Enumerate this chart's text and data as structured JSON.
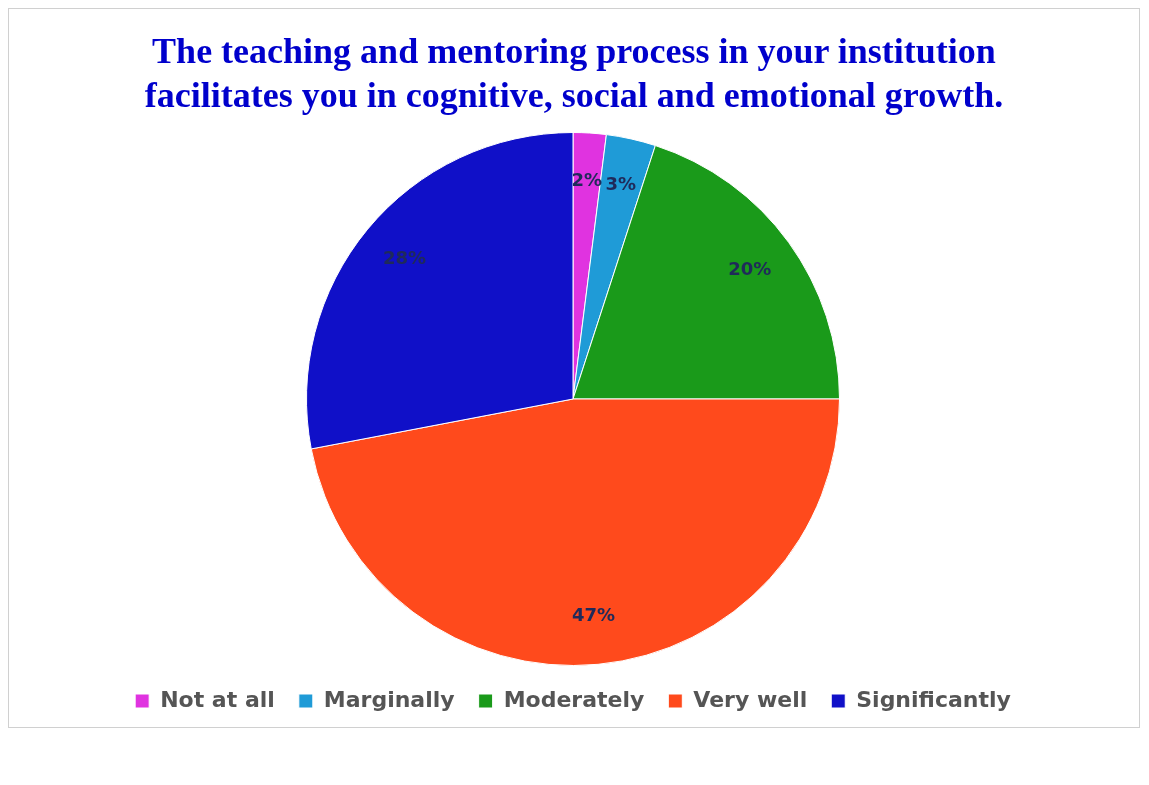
{
  "chart_data": {
    "type": "pie",
    "title": "The teaching and mentoring process in your institution facilitates you in cognitive, social and emotional growth.",
    "categories": [
      "Not at all",
      "Marginally",
      "Moderately",
      "Very well",
      "Significantly"
    ],
    "values": [
      2,
      3,
      20,
      47,
      28
    ],
    "colors": [
      "#e033e0",
      "#1f9bd7",
      "#1a9a1a",
      "#ff4a1c",
      "#1010c8"
    ],
    "value_labels": [
      "2%",
      "3%",
      "20%",
      "47%",
      "28%"
    ],
    "legend": "bottom"
  }
}
